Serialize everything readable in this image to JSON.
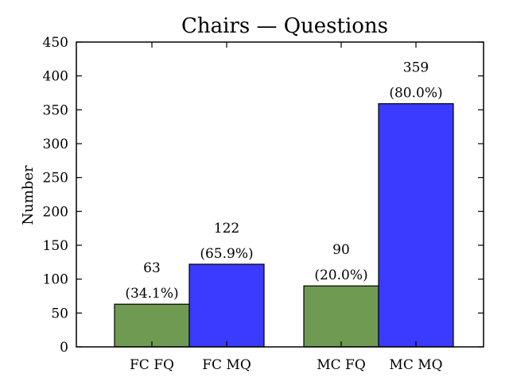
{
  "chart_data": {
    "type": "bar",
    "title": "Chairs — Questions",
    "xlabel": "",
    "ylabel": "Number",
    "ylim": [
      0,
      450
    ],
    "yticks": [
      0,
      50,
      100,
      150,
      200,
      250,
      300,
      350,
      400,
      450
    ],
    "grid": false,
    "legend": "none",
    "bars": [
      {
        "category": "FC FQ",
        "value": 63,
        "value_label": "63",
        "pct_label": "(34.1%)",
        "color": "#6f9a52"
      },
      {
        "category": "FC MQ",
        "value": 122,
        "value_label": "122",
        "pct_label": "(65.9%)",
        "color": "#3b3bff"
      },
      {
        "category": "MC FQ",
        "value": 90,
        "value_label": "90",
        "pct_label": "(20.0%)",
        "color": "#6f9a52"
      },
      {
        "category": "MC MQ",
        "value": 359,
        "value_label": "359",
        "pct_label": "(80.0%)",
        "color": "#3b3bff"
      }
    ]
  }
}
